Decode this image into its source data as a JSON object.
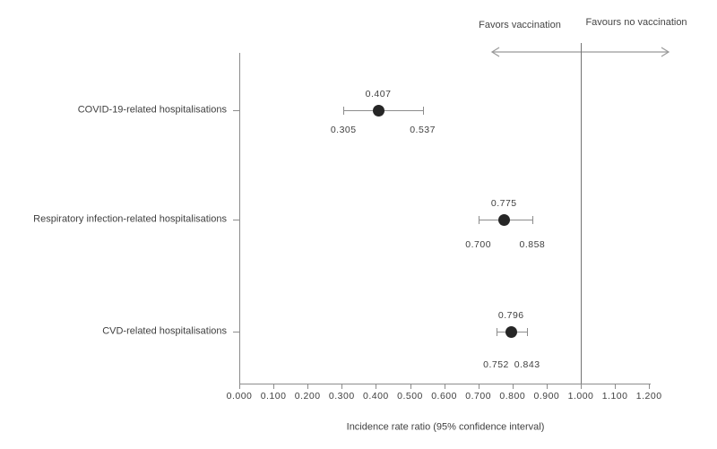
{
  "chart_data": {
    "type": "scatter",
    "subtype": "forest-plot",
    "title": "",
    "xlabel": "Incidence rate ratio (95% confidence interval)",
    "ylabel": "",
    "xlim": [
      0.0,
      1.2
    ],
    "grid": false,
    "x_tick_labels": [
      "0.000",
      "0.100",
      "0.200",
      "0.300",
      "0.400",
      "0.500",
      "0.600",
      "0.700",
      "0.800",
      "0.900",
      "1.000",
      "1.100",
      "1.200"
    ],
    "reference_line": {
      "value": 1.0
    },
    "direction_labels": {
      "left": "Favors vaccination",
      "right": "Favours no vaccination"
    },
    "series": [
      {
        "category": "COVID-19-related hospitalisations",
        "estimate": 0.407,
        "ci_low": 0.305,
        "ci_high": 0.537,
        "estimate_label": "0.407",
        "ci_low_label": "0.305",
        "ci_high_label": "0.537"
      },
      {
        "category": "Respiratory infection-related hospitalisations",
        "estimate": 0.775,
        "ci_low": 0.7,
        "ci_high": 0.858,
        "estimate_label": "0.775",
        "ci_low_label": "0.700",
        "ci_high_label": "0.858"
      },
      {
        "category": "CVD-related hospitalisations",
        "estimate": 0.796,
        "ci_low": 0.752,
        "ci_high": 0.843,
        "estimate_label": "0.796",
        "ci_low_label": "0.752",
        "ci_high_label": "0.843"
      }
    ],
    "colors": {
      "marker": "#262626",
      "error_bar": "#8c8c8c",
      "axis": "#8c8c8c",
      "reference_line": "#737373",
      "arrow": "#999999",
      "text": "#404040"
    }
  }
}
